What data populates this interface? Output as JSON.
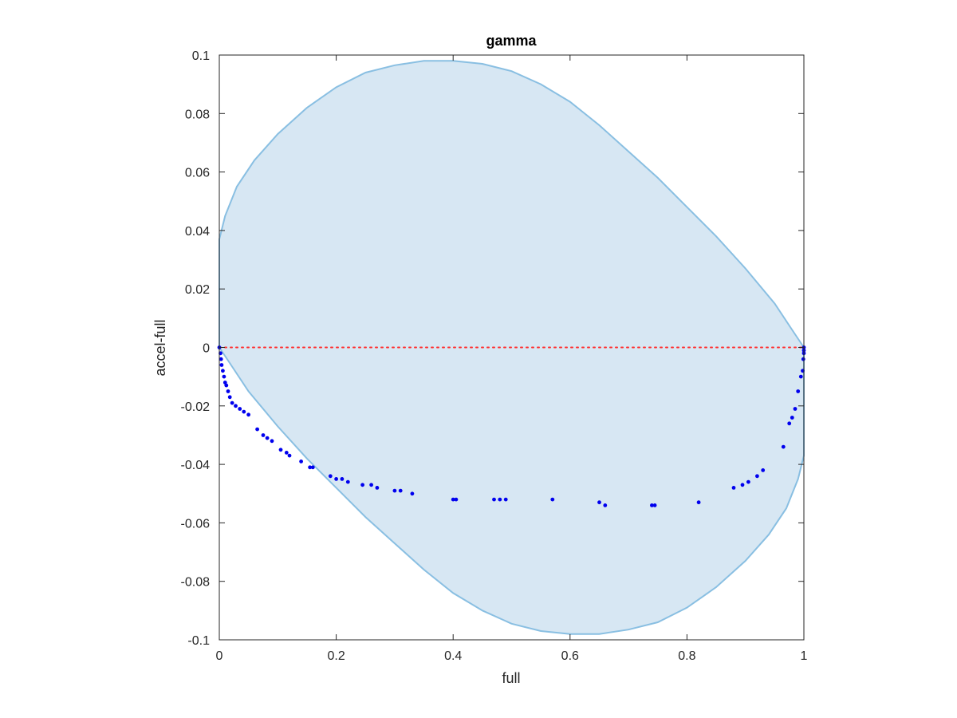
{
  "chart_data": {
    "type": "scatter",
    "title": "gamma",
    "xlabel": "full",
    "ylabel": "accel-full",
    "xlim": [
      0,
      1
    ],
    "ylim": [
      -0.1,
      0.1
    ],
    "x_ticks": [
      0,
      0.2,
      0.4,
      0.6,
      0.8,
      1
    ],
    "x_tick_labels": [
      "0",
      "0.2",
      "0.4",
      "0.6",
      "0.8",
      "1"
    ],
    "y_ticks": [
      0.1,
      0.08,
      0.06,
      0.04,
      0.02,
      0,
      -0.02,
      -0.04,
      -0.06,
      -0.08,
      -0.1
    ],
    "y_tick_labels": [
      "0.1",
      "0.08",
      "0.06",
      "0.04",
      "0.02",
      "0",
      "-0.02",
      "-0.04",
      "-0.06",
      "-0.08",
      "-0.1"
    ],
    "grid": false,
    "colors": {
      "region_fill": "#d7e7f3",
      "region_edge": "#89bfe2",
      "points": "#0000ee",
      "reference_line": "#ff3030",
      "axes": "#262626"
    },
    "reference_line": {
      "y": 0,
      "style": "dotted"
    },
    "region_boundary": [
      [
        0,
        0.037
      ],
      [
        0.01,
        0.045
      ],
      [
        0.03,
        0.055
      ],
      [
        0.06,
        0.064
      ],
      [
        0.1,
        0.073
      ],
      [
        0.15,
        0.082
      ],
      [
        0.2,
        0.089
      ],
      [
        0.25,
        0.094
      ],
      [
        0.3,
        0.0965
      ],
      [
        0.35,
        0.098
      ],
      [
        0.4,
        0.098
      ],
      [
        0.45,
        0.097
      ],
      [
        0.5,
        0.0945
      ],
      [
        0.55,
        0.09
      ],
      [
        0.6,
        0.084
      ],
      [
        0.65,
        0.076
      ],
      [
        0.7,
        0.067
      ],
      [
        0.75,
        0.058
      ],
      [
        0.8,
        0.048
      ],
      [
        0.85,
        0.038
      ],
      [
        0.9,
        0.027
      ],
      [
        0.95,
        0.015
      ],
      [
        0.98,
        0.006
      ],
      [
        1,
        0.0
      ],
      [
        1,
        -0.037
      ],
      [
        0.99,
        -0.045
      ],
      [
        0.97,
        -0.055
      ],
      [
        0.94,
        -0.064
      ],
      [
        0.9,
        -0.073
      ],
      [
        0.85,
        -0.082
      ],
      [
        0.8,
        -0.089
      ],
      [
        0.75,
        -0.094
      ],
      [
        0.7,
        -0.0965
      ],
      [
        0.65,
        -0.098
      ],
      [
        0.6,
        -0.098
      ],
      [
        0.55,
        -0.097
      ],
      [
        0.5,
        -0.0945
      ],
      [
        0.45,
        -0.09
      ],
      [
        0.4,
        -0.084
      ],
      [
        0.35,
        -0.076
      ],
      [
        0.3,
        -0.067
      ],
      [
        0.25,
        -0.058
      ],
      [
        0.2,
        -0.048
      ],
      [
        0.15,
        -0.038
      ],
      [
        0.1,
        -0.027
      ],
      [
        0.05,
        -0.015
      ],
      [
        0.02,
        -0.006
      ],
      [
        0,
        0.0
      ]
    ],
    "points": [
      [
        0,
        0
      ],
      [
        0.002,
        -0.002
      ],
      [
        0.003,
        -0.004
      ],
      [
        0.004,
        -0.006
      ],
      [
        0.006,
        -0.008
      ],
      [
        0.008,
        -0.01
      ],
      [
        0.01,
        -0.012
      ],
      [
        0.012,
        -0.013
      ],
      [
        0.015,
        -0.015
      ],
      [
        0.018,
        -0.017
      ],
      [
        0.022,
        -0.019
      ],
      [
        0.028,
        -0.02
      ],
      [
        0.035,
        -0.021
      ],
      [
        0.042,
        -0.022
      ],
      [
        0.05,
        -0.023
      ],
      [
        0.065,
        -0.028
      ],
      [
        0.075,
        -0.03
      ],
      [
        0.082,
        -0.031
      ],
      [
        0.09,
        -0.032
      ],
      [
        0.105,
        -0.035
      ],
      [
        0.115,
        -0.036
      ],
      [
        0.12,
        -0.037
      ],
      [
        0.14,
        -0.039
      ],
      [
        0.155,
        -0.041
      ],
      [
        0.16,
        -0.041
      ],
      [
        0.19,
        -0.044
      ],
      [
        0.2,
        -0.045
      ],
      [
        0.21,
        -0.045
      ],
      [
        0.22,
        -0.046
      ],
      [
        0.245,
        -0.047
      ],
      [
        0.26,
        -0.047
      ],
      [
        0.27,
        -0.048
      ],
      [
        0.3,
        -0.049
      ],
      [
        0.31,
        -0.049
      ],
      [
        0.33,
        -0.05
      ],
      [
        0.4,
        -0.052
      ],
      [
        0.405,
        -0.052
      ],
      [
        0.47,
        -0.052
      ],
      [
        0.48,
        -0.052
      ],
      [
        0.49,
        -0.052
      ],
      [
        0.57,
        -0.052
      ],
      [
        0.65,
        -0.053
      ],
      [
        0.66,
        -0.054
      ],
      [
        0.74,
        -0.054
      ],
      [
        0.745,
        -0.054
      ],
      [
        0.82,
        -0.053
      ],
      [
        0.88,
        -0.048
      ],
      [
        0.895,
        -0.047
      ],
      [
        0.905,
        -0.046
      ],
      [
        0.92,
        -0.044
      ],
      [
        0.93,
        -0.042
      ],
      [
        0.965,
        -0.034
      ],
      [
        0.975,
        -0.026
      ],
      [
        0.98,
        -0.024
      ],
      [
        0.985,
        -0.021
      ],
      [
        0.99,
        -0.015
      ],
      [
        0.995,
        -0.01
      ],
      [
        0.998,
        -0.008
      ],
      [
        0.999,
        -0.004
      ],
      [
        1,
        -0.002
      ],
      [
        1,
        -0.001
      ],
      [
        1,
        0
      ]
    ]
  }
}
